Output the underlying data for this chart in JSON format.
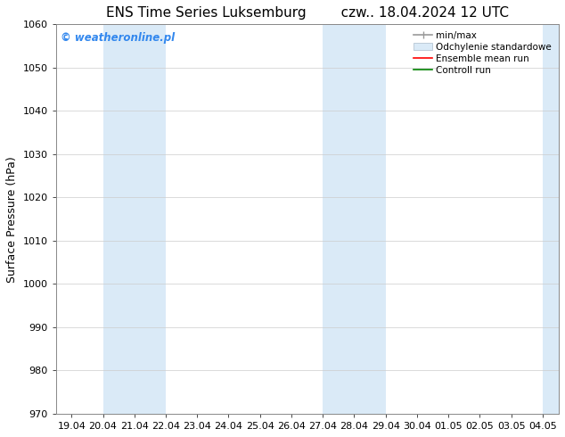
{
  "title_left": "ENS Time Series Luksemburg",
  "title_right": "czw.. 18.04.2024 12 UTC",
  "ylabel": "Surface Pressure (hPa)",
  "ylim": [
    970,
    1060
  ],
  "yticks": [
    970,
    980,
    990,
    1000,
    1010,
    1020,
    1030,
    1040,
    1050,
    1060
  ],
  "x_labels": [
    "19.04",
    "20.04",
    "21.04",
    "22.04",
    "23.04",
    "24.04",
    "25.04",
    "26.04",
    "27.04",
    "28.04",
    "29.04",
    "30.04",
    "01.05",
    "02.05",
    "03.05",
    "04.05"
  ],
  "x_positions": [
    0,
    1,
    2,
    3,
    4,
    5,
    6,
    7,
    8,
    9,
    10,
    11,
    12,
    13,
    14,
    15
  ],
  "shaded_regions": [
    {
      "xmin": 1.0,
      "xmax": 3.0,
      "color": "#daeaf7"
    },
    {
      "xmin": 8.0,
      "xmax": 10.0,
      "color": "#daeaf7"
    },
    {
      "xmin": 15.0,
      "xmax": 15.5,
      "color": "#daeaf7"
    }
  ],
  "watermark_text": "© weatheronline.pl",
  "watermark_color": "#3388ee",
  "bg_color": "#ffffff",
  "grid_color": "#cccccc",
  "title_fontsize": 11,
  "axis_label_fontsize": 9,
  "tick_fontsize": 8,
  "legend_fontsize": 7.5
}
